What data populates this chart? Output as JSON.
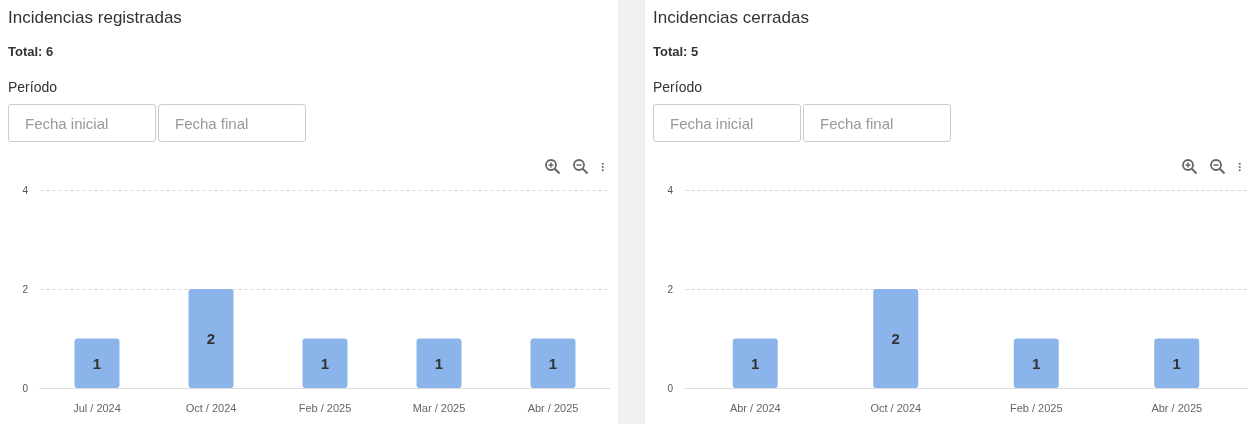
{
  "chart_data": [
    {
      "type": "bar",
      "title": "Incidencias registradas",
      "subtitle": "Total: 6",
      "annotations": [
        "Período",
        "Fecha inicial",
        "Fecha final"
      ],
      "categories": [
        "Jul / 2024",
        "Oct / 2024",
        "Feb / 2025",
        "Mar / 2025",
        "Abr / 2025"
      ],
      "values": [
        1,
        2,
        1,
        1,
        1
      ],
      "color": "#8ab4ea",
      "ylim": [
        0,
        4
      ],
      "yticks": [
        0,
        2,
        4
      ],
      "grid": "y",
      "data_labels": true
    },
    {
      "type": "bar",
      "title": "Incidencias cerradas",
      "subtitle": "Total: 5",
      "annotations": [
        "Período",
        "Fecha inicial",
        "Fecha final"
      ],
      "categories": [
        "Abr / 2024",
        "Oct / 2024",
        "Feb / 2025",
        "Abr / 2025"
      ],
      "values": [
        1,
        2,
        1,
        1
      ],
      "color": "#8ab4ea",
      "ylim": [
        0,
        4
      ],
      "yticks": [
        0,
        2,
        4
      ],
      "grid": "y",
      "data_labels": true
    }
  ]
}
